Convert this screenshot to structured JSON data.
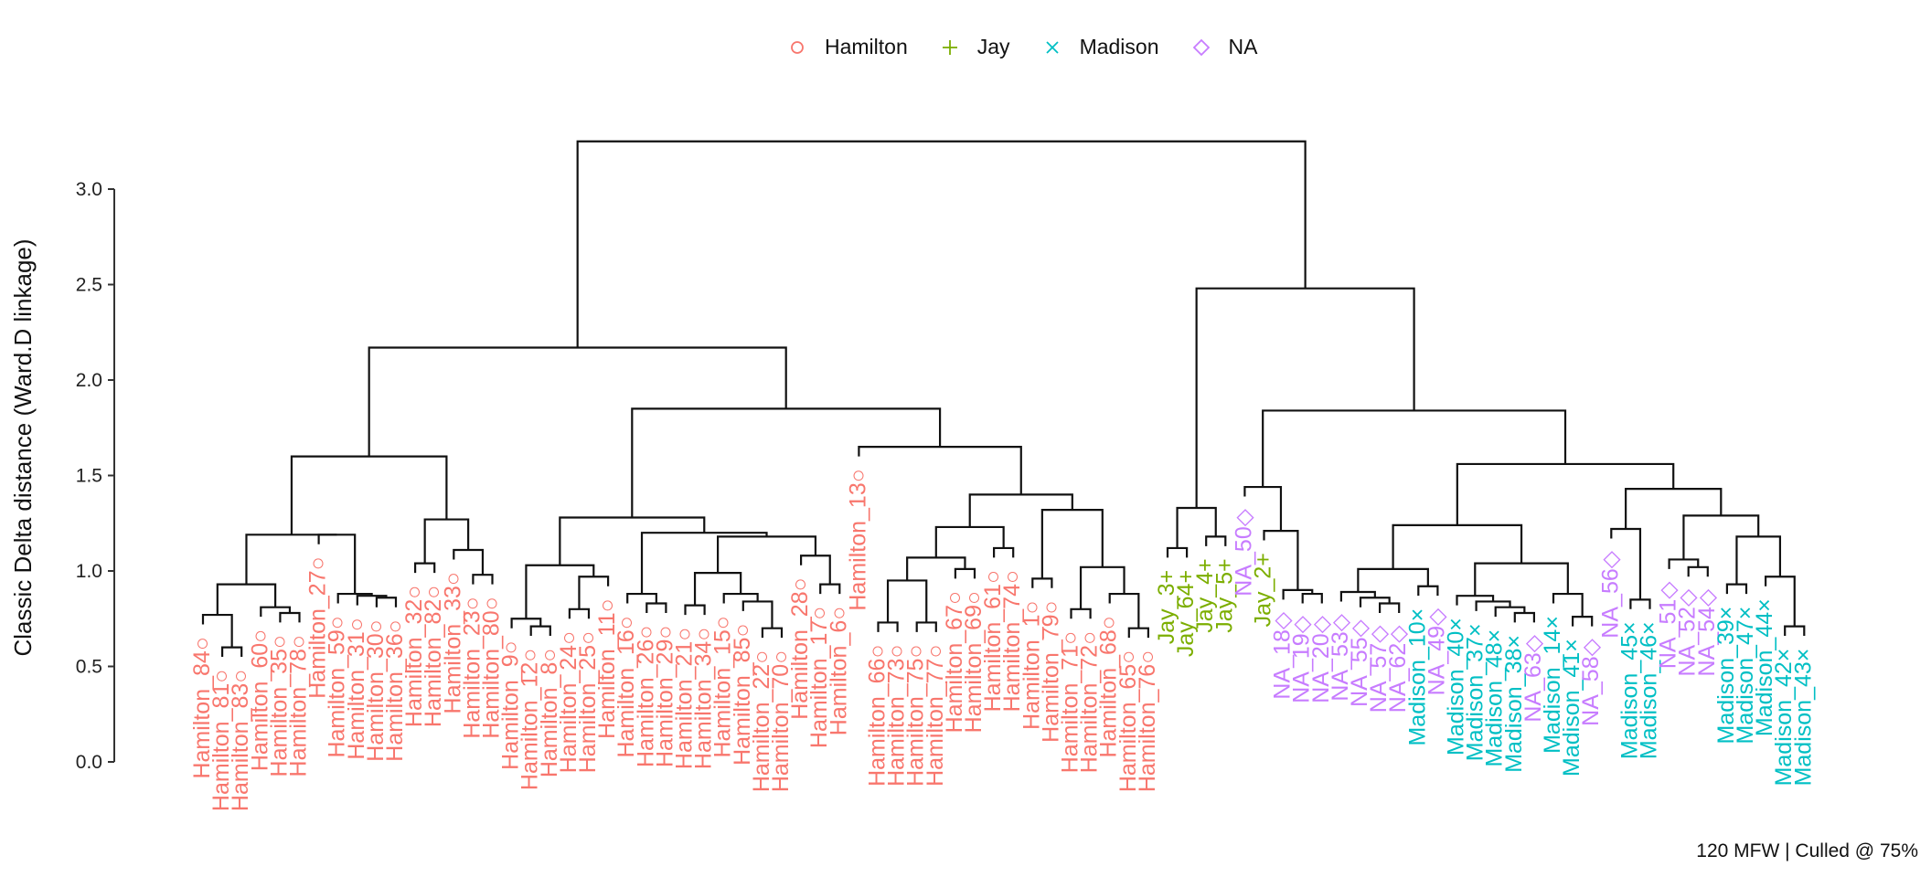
{
  "chart_data": {
    "type": "dendrogram",
    "title": "",
    "xlabel": "",
    "ylabel": "Classic Delta distance (Ward.D linkage)",
    "ylim": [
      0,
      3.3
    ],
    "yticks": [
      "0.0",
      "0.5",
      "1.0",
      "1.5",
      "2.0",
      "2.5",
      "3.0"
    ],
    "grid": false,
    "legend_position": "top",
    "caption": "120 MFW | Culled @ 75%",
    "groups": [
      {
        "name": "Hamilton",
        "color": "#F8766D",
        "marker": "circle",
        "marker_glyph": "○"
      },
      {
        "name": "Jay",
        "color": "#7CAE00",
        "marker": "plus",
        "marker_glyph": "+"
      },
      {
        "name": "Madison",
        "color": "#00BFC4",
        "marker": "cross",
        "marker_glyph": "×"
      },
      {
        "name": "NA",
        "color": "#C77CFF",
        "marker": "diamond",
        "marker_glyph": "◇"
      }
    ],
    "leaves": [
      {
        "label": "Hamilton_84",
        "group": "Hamilton"
      },
      {
        "label": "Hamilton_81",
        "group": "Hamilton"
      },
      {
        "label": "Hamilton_83",
        "group": "Hamilton"
      },
      {
        "label": "Hamilton_60",
        "group": "Hamilton"
      },
      {
        "label": "Hamilton_35",
        "group": "Hamilton"
      },
      {
        "label": "Hamilton_78",
        "group": "Hamilton"
      },
      {
        "label": "Hamilton_27",
        "group": "Hamilton"
      },
      {
        "label": "Hamilton_59",
        "group": "Hamilton"
      },
      {
        "label": "Hamilton_31",
        "group": "Hamilton"
      },
      {
        "label": "Hamilton_30",
        "group": "Hamilton"
      },
      {
        "label": "Hamilton_36",
        "group": "Hamilton"
      },
      {
        "label": "Hamilton_32",
        "group": "Hamilton"
      },
      {
        "label": "Hamilton_82",
        "group": "Hamilton"
      },
      {
        "label": "Hamilton_33",
        "group": "Hamilton"
      },
      {
        "label": "Hamilton_23",
        "group": "Hamilton"
      },
      {
        "label": "Hamilton_80",
        "group": "Hamilton"
      },
      {
        "label": "Hamilton_9",
        "group": "Hamilton"
      },
      {
        "label": "Hamilton_12",
        "group": "Hamilton"
      },
      {
        "label": "Hamilton_8",
        "group": "Hamilton"
      },
      {
        "label": "Hamilton_24",
        "group": "Hamilton"
      },
      {
        "label": "Hamilton_25",
        "group": "Hamilton"
      },
      {
        "label": "Hamilton_11",
        "group": "Hamilton"
      },
      {
        "label": "Hamilton_16",
        "group": "Hamilton"
      },
      {
        "label": "Hamilton_26",
        "group": "Hamilton"
      },
      {
        "label": "Hamilton_29",
        "group": "Hamilton"
      },
      {
        "label": "Hamilton_21",
        "group": "Hamilton"
      },
      {
        "label": "Hamilton_34",
        "group": "Hamilton"
      },
      {
        "label": "Hamilton_15",
        "group": "Hamilton"
      },
      {
        "label": "Hamilton_85",
        "group": "Hamilton"
      },
      {
        "label": "Hamilton_22",
        "group": "Hamilton"
      },
      {
        "label": "Hamilton_70",
        "group": "Hamilton"
      },
      {
        "label": "Hamilton_28",
        "group": "Hamilton"
      },
      {
        "label": "Hamilton_17",
        "group": "Hamilton"
      },
      {
        "label": "Hamilton_6",
        "group": "Hamilton"
      },
      {
        "label": "Hamilton_13",
        "group": "Hamilton"
      },
      {
        "label": "Hamilton_66",
        "group": "Hamilton"
      },
      {
        "label": "Hamilton_73",
        "group": "Hamilton"
      },
      {
        "label": "Hamilton_75",
        "group": "Hamilton"
      },
      {
        "label": "Hamilton_77",
        "group": "Hamilton"
      },
      {
        "label": "Hamilton_67",
        "group": "Hamilton"
      },
      {
        "label": "Hamilton_69",
        "group": "Hamilton"
      },
      {
        "label": "Hamilton_61",
        "group": "Hamilton"
      },
      {
        "label": "Hamilton_74",
        "group": "Hamilton"
      },
      {
        "label": "Hamilton_1",
        "group": "Hamilton"
      },
      {
        "label": "Hamilton_79",
        "group": "Hamilton"
      },
      {
        "label": "Hamilton_71",
        "group": "Hamilton"
      },
      {
        "label": "Hamilton_72",
        "group": "Hamilton"
      },
      {
        "label": "Hamilton_68",
        "group": "Hamilton"
      },
      {
        "label": "Hamilton_65",
        "group": "Hamilton"
      },
      {
        "label": "Hamilton_76",
        "group": "Hamilton"
      },
      {
        "label": "Jay_3",
        "group": "Jay"
      },
      {
        "label": "Jay_64",
        "group": "Jay"
      },
      {
        "label": "Jay_4",
        "group": "Jay"
      },
      {
        "label": "Jay_5",
        "group": "Jay"
      },
      {
        "label": "NA_50",
        "group": "NA"
      },
      {
        "label": "Jay_2",
        "group": "Jay"
      },
      {
        "label": "NA_18",
        "group": "NA"
      },
      {
        "label": "NA_19",
        "group": "NA"
      },
      {
        "label": "NA_20",
        "group": "NA"
      },
      {
        "label": "NA_53",
        "group": "NA"
      },
      {
        "label": "NA_55",
        "group": "NA"
      },
      {
        "label": "NA_57",
        "group": "NA"
      },
      {
        "label": "NA_62",
        "group": "NA"
      },
      {
        "label": "Madison_10",
        "group": "Madison"
      },
      {
        "label": "NA_49",
        "group": "NA"
      },
      {
        "label": "Madison_40",
        "group": "Madison"
      },
      {
        "label": "Madison_37",
        "group": "Madison"
      },
      {
        "label": "Madison_48",
        "group": "Madison"
      },
      {
        "label": "Madison_38",
        "group": "Madison"
      },
      {
        "label": "NA_63",
        "group": "NA"
      },
      {
        "label": "Madison_14",
        "group": "Madison"
      },
      {
        "label": "Madison_41",
        "group": "Madison"
      },
      {
        "label": "NA_58",
        "group": "NA"
      },
      {
        "label": "NA_56",
        "group": "NA"
      },
      {
        "label": "Madison_45",
        "group": "Madison"
      },
      {
        "label": "Madison_46",
        "group": "Madison"
      },
      {
        "label": "NA_51",
        "group": "NA"
      },
      {
        "label": "NA_52",
        "group": "NA"
      },
      {
        "label": "NA_54",
        "group": "NA"
      },
      {
        "label": "Madison_39",
        "group": "Madison"
      },
      {
        "label": "Madison_47",
        "group": "Madison"
      },
      {
        "label": "Madison_44",
        "group": "Madison"
      },
      {
        "label": "Madison_42",
        "group": "Madison"
      },
      {
        "label": "Madison_43",
        "group": "Madison"
      }
    ]
  }
}
